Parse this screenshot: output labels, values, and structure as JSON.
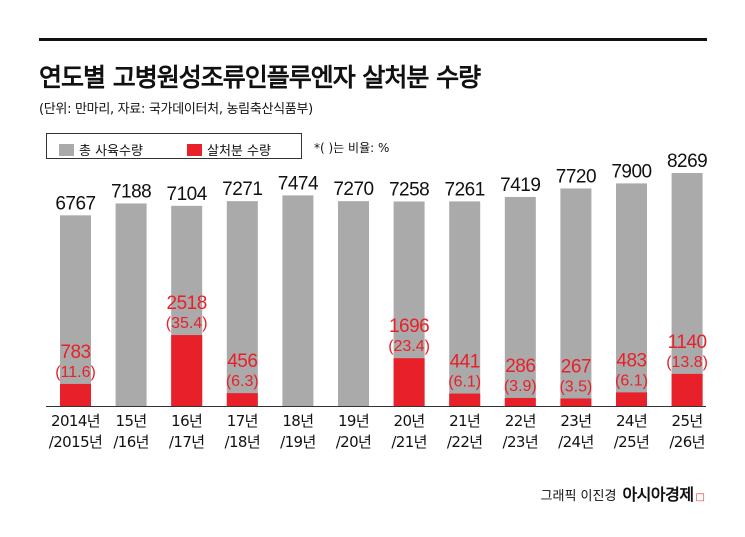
{
  "header": {
    "title": "연도별 고병원성조류인플루엔자 살처분 수량",
    "subtitle": "(단위: 만마리, 자료: 국가데이터처, 농림축산식품부)"
  },
  "legend": {
    "total_label": "총 사육수량",
    "cull_label": "살처분 수량",
    "note": "*(   )는 비율: %"
  },
  "colors": {
    "total": "#aaaaaa",
    "cull": "#e8202a",
    "text": "#111111",
    "cull_text": "#e8202a"
  },
  "credit": {
    "author": "그래픽 이진경",
    "brand": "아시아경제",
    "brand_mark": "ㅁ"
  },
  "chart_data": {
    "type": "bar",
    "categories": [
      [
        "2014년",
        "/2015년"
      ],
      [
        "15년",
        "/16년"
      ],
      [
        "16년",
        "/17년"
      ],
      [
        "17년",
        "/18년"
      ],
      [
        "18년",
        "/19년"
      ],
      [
        "19년",
        "/20년"
      ],
      [
        "20년",
        "/21년"
      ],
      [
        "21년",
        "/22년"
      ],
      [
        "22년",
        "/23년"
      ],
      [
        "23년",
        "/24년"
      ],
      [
        "24년",
        "/25년"
      ],
      [
        "25년",
        "/26년"
      ]
    ],
    "series": [
      {
        "name": "총 사육수량",
        "values": [
          6767,
          7188,
          7104,
          7271,
          7474,
          7270,
          7258,
          7261,
          7419,
          7720,
          7900,
          8269
        ]
      },
      {
        "name": "살처분 수량",
        "values": [
          783,
          null,
          2518,
          456,
          null,
          null,
          1696,
          441,
          286,
          267,
          483,
          1140
        ],
        "ratios": [
          "(11.6)",
          null,
          "(35.4)",
          "(6.3)",
          null,
          null,
          "(23.4)",
          "(6.1)",
          "(3.9)",
          "(3.5)",
          "(6.1)",
          "(13.8)"
        ]
      }
    ],
    "ylim": [
      0,
      8269
    ]
  }
}
